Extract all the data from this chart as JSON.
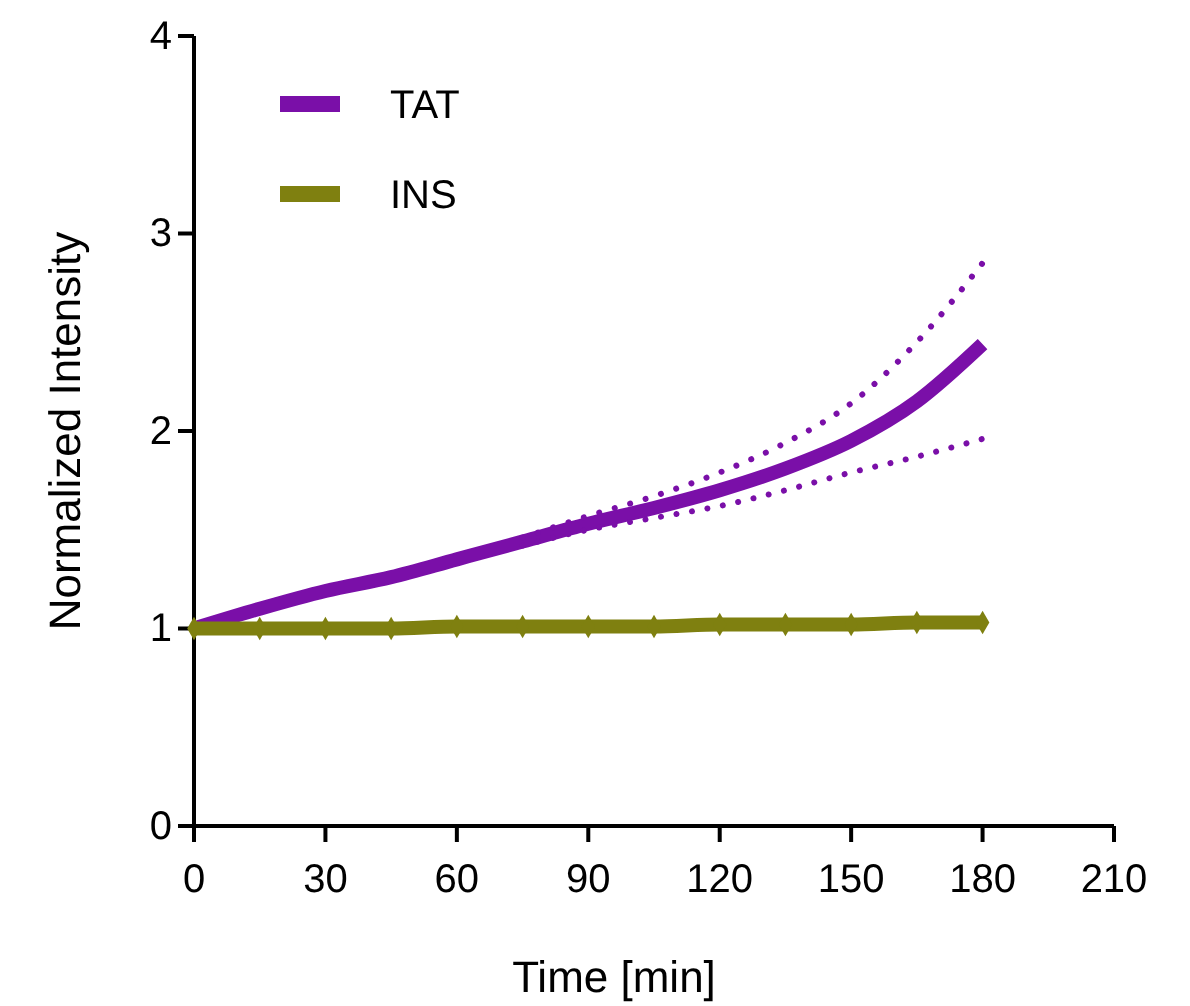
{
  "chart_data": {
    "type": "line",
    "xlabel": "Time [min]",
    "ylabel": "Normalized Intensity",
    "xlim": [
      0,
      210
    ],
    "xticks": [
      0,
      30,
      60,
      90,
      120,
      150,
      180,
      210
    ],
    "ylim": [
      0,
      4
    ],
    "yticks": [
      0,
      1,
      2,
      3,
      4
    ],
    "grid": false,
    "legend": "top left",
    "series": [
      {
        "name": "TAT",
        "color": "#7a0fa8",
        "x": [
          0,
          15,
          30,
          45,
          60,
          75,
          90,
          105,
          120,
          135,
          150,
          165,
          180
        ],
        "values": [
          1.0,
          1.1,
          1.19,
          1.26,
          1.35,
          1.44,
          1.53,
          1.61,
          1.7,
          1.81,
          1.95,
          2.15,
          2.44
        ],
        "line_style": "solid"
      },
      {
        "color": "#7a0fa8",
        "x": [
          75,
          90,
          105,
          120,
          135,
          150,
          165,
          180
        ],
        "values": [
          1.42,
          1.5,
          1.56,
          1.62,
          1.7,
          1.79,
          1.87,
          1.96
        ],
        "line_style": "dotted"
      },
      {
        "color": "#7a0fa8",
        "x": [
          75,
          90,
          105,
          120,
          135,
          150,
          165,
          180
        ],
        "values": [
          1.46,
          1.57,
          1.67,
          1.79,
          1.94,
          2.14,
          2.45,
          2.85
        ],
        "line_style": "dotted"
      },
      {
        "name": "INS",
        "color": "#7f8010",
        "marker": "diamond",
        "x": [
          0,
          15,
          30,
          45,
          60,
          75,
          90,
          105,
          120,
          135,
          150,
          165,
          180
        ],
        "values": [
          1.0,
          1.0,
          1.0,
          1.0,
          1.01,
          1.01,
          1.01,
          1.01,
          1.02,
          1.02,
          1.02,
          1.03,
          1.03
        ],
        "line_style": "solid"
      }
    ]
  }
}
